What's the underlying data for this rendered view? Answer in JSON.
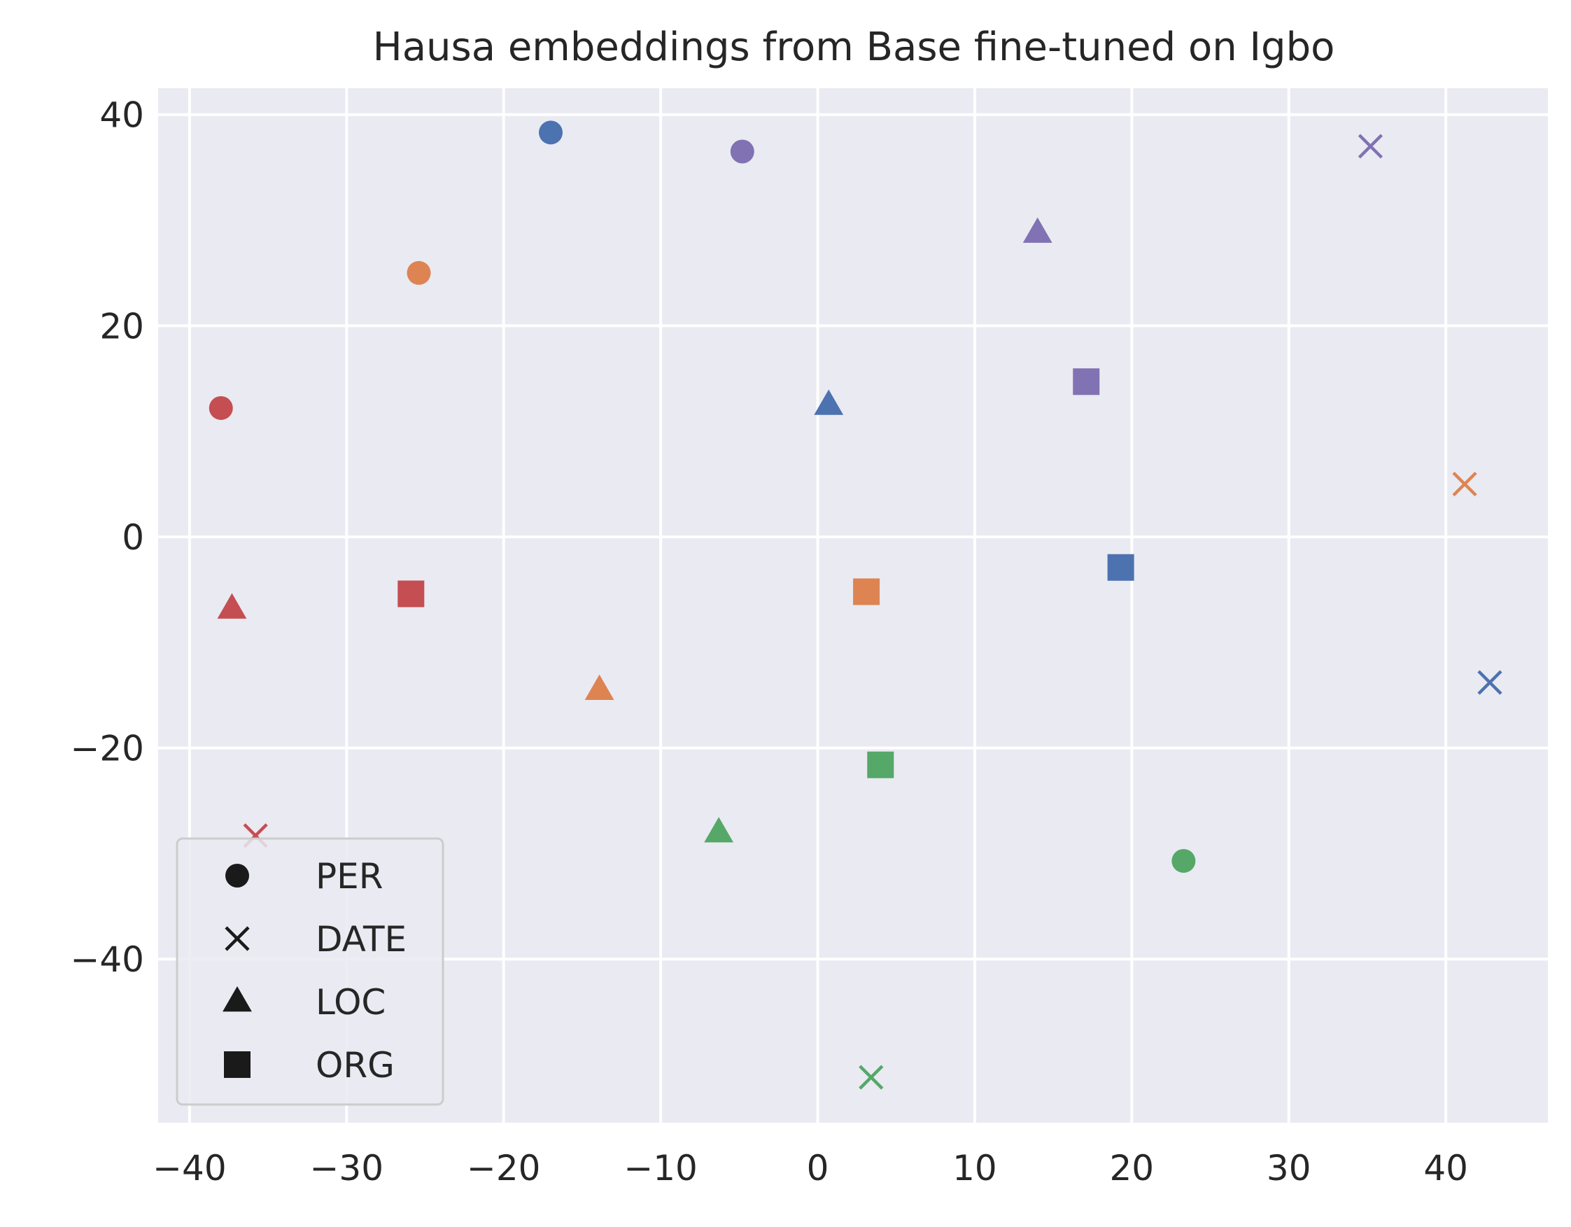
{
  "chart_data": {
    "type": "scatter",
    "title": "Hausa embeddings from Base fine-tuned on Igbo",
    "xlabel": "",
    "ylabel": "",
    "xlim": [
      -42,
      46.5
    ],
    "ylim": [
      -55.5,
      42.5
    ],
    "x_ticks": [
      -40,
      -30,
      -20,
      -10,
      0,
      10,
      20,
      30,
      40
    ],
    "x_tick_labels": [
      "−40",
      "−30",
      "−20",
      "−10",
      "0",
      "10",
      "20",
      "30",
      "40"
    ],
    "y_ticks": [
      -40,
      -20,
      0,
      20,
      40
    ],
    "y_tick_labels": [
      "−40",
      "−20",
      "0",
      "20",
      "40"
    ],
    "grid": true,
    "legend_position": "bottom-left",
    "legend": [
      {
        "label": "PER",
        "marker": "circle"
      },
      {
        "label": "DATE",
        "marker": "x"
      },
      {
        "label": "LOC",
        "marker": "triangle"
      },
      {
        "label": "ORG",
        "marker": "square"
      }
    ],
    "colors": {
      "blue": "#4c72b0",
      "orange": "#dd8452",
      "green": "#55a868",
      "red": "#c44e52",
      "purple": "#8172b3"
    },
    "points": [
      {
        "x": -17.0,
        "y": 38.3,
        "marker": "circle",
        "color": "blue"
      },
      {
        "x": -4.8,
        "y": 36.5,
        "marker": "circle",
        "color": "purple"
      },
      {
        "x": -25.4,
        "y": 25.0,
        "marker": "circle",
        "color": "orange"
      },
      {
        "x": -38.0,
        "y": 12.2,
        "marker": "circle",
        "color": "red"
      },
      {
        "x": 23.3,
        "y": -30.7,
        "marker": "circle",
        "color": "green"
      },
      {
        "x": 35.2,
        "y": 37.0,
        "marker": "x",
        "color": "purple"
      },
      {
        "x": 41.2,
        "y": 5.0,
        "marker": "x",
        "color": "orange"
      },
      {
        "x": 42.8,
        "y": -13.8,
        "marker": "x",
        "color": "blue"
      },
      {
        "x": -35.8,
        "y": -28.3,
        "marker": "x",
        "color": "red"
      },
      {
        "x": 3.4,
        "y": -51.2,
        "marker": "x",
        "color": "green"
      },
      {
        "x": 14.0,
        "y": 28.8,
        "marker": "triangle",
        "color": "purple"
      },
      {
        "x": 0.7,
        "y": 12.5,
        "marker": "triangle",
        "color": "blue"
      },
      {
        "x": -37.3,
        "y": -6.8,
        "marker": "triangle",
        "color": "red"
      },
      {
        "x": -13.9,
        "y": -14.5,
        "marker": "triangle",
        "color": "orange"
      },
      {
        "x": -6.3,
        "y": -28.0,
        "marker": "triangle",
        "color": "green"
      },
      {
        "x": 17.1,
        "y": 14.7,
        "marker": "square",
        "color": "purple"
      },
      {
        "x": 19.3,
        "y": -2.9,
        "marker": "square",
        "color": "blue"
      },
      {
        "x": 3.1,
        "y": -5.2,
        "marker": "square",
        "color": "orange"
      },
      {
        "x": -25.9,
        "y": -5.4,
        "marker": "square",
        "color": "red"
      },
      {
        "x": 4.0,
        "y": -21.6,
        "marker": "square",
        "color": "green"
      }
    ]
  }
}
